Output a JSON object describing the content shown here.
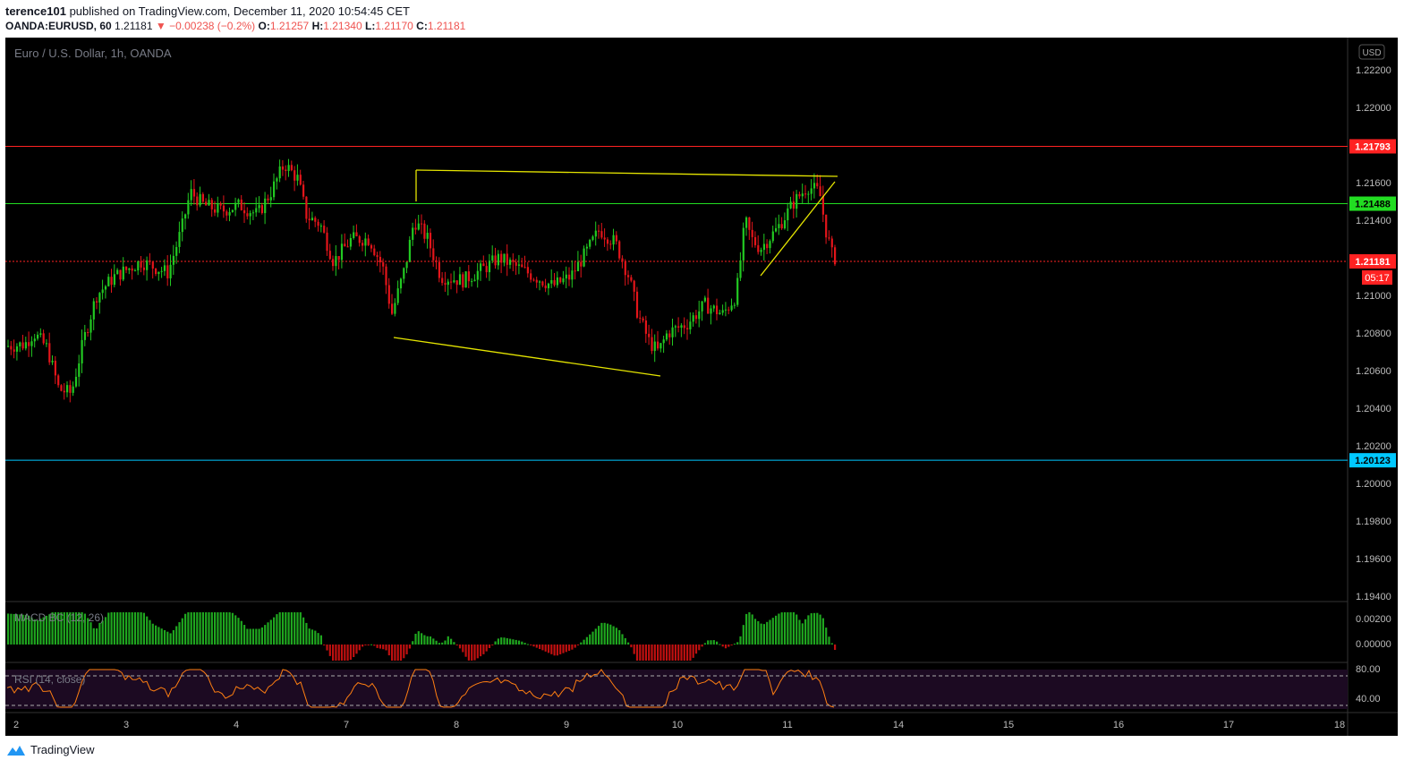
{
  "header": {
    "author": "terence101",
    "published": " published on TradingView.com, December 11, 2020 10:54:45 CET",
    "symbol": "OANDA:EURUSD, 60",
    "last": "1.21181",
    "change": "▼ −0.00238 (−0.2%)",
    "o_label": "O:",
    "o_value": "1.21257",
    "h_label": "H:",
    "h_value": "1.21340",
    "l_label": "L:",
    "l_value": "1.21170",
    "c_label": "C:",
    "c_value": "1.21181"
  },
  "chart": {
    "title": "Euro / U.S. Dollar, 1h, OANDA",
    "currency": "USD",
    "countdown": "05:17",
    "price_ticks": [
      "1.22200",
      "1.22000",
      "1.21600",
      "1.21400",
      "1.21000",
      "1.20800",
      "1.20600",
      "1.20400",
      "1.20200",
      "1.20000",
      "1.19800",
      "1.19600",
      "1.19400"
    ],
    "price_tick_values": [
      1.222,
      1.22,
      1.216,
      1.214,
      1.21,
      1.208,
      1.206,
      1.204,
      1.202,
      1.2,
      1.198,
      1.196,
      1.194
    ],
    "levels": [
      {
        "label": "1.21793",
        "value": 1.21793,
        "color": "#ff2222"
      },
      {
        "label": "1.21488",
        "value": 1.21488,
        "color": "#22dd22"
      },
      {
        "label": "1.21181",
        "value": 1.21181,
        "color": "#ff2222"
      },
      {
        "label": "1.20123",
        "value": 1.20123,
        "color": "#00c8ff"
      }
    ],
    "x_ticks": [
      "2",
      "3",
      "4",
      "7",
      "8",
      "9",
      "10",
      "11",
      "14",
      "15",
      "16",
      "17",
      "18"
    ],
    "macd_label": "MACD BC (12, 26)",
    "macd_ticks": [
      "0.00200",
      "0.00000"
    ],
    "rsi_label": "RSI (14, close)",
    "rsi_ticks": [
      "80.00",
      "40.00"
    ],
    "colors": {
      "up": "#26a69a",
      "upBright": "#22c922",
      "down": "#e3151a",
      "bg": "#000000",
      "axis": "#131722"
    }
  },
  "footer": {
    "brand": "TradingView"
  }
}
